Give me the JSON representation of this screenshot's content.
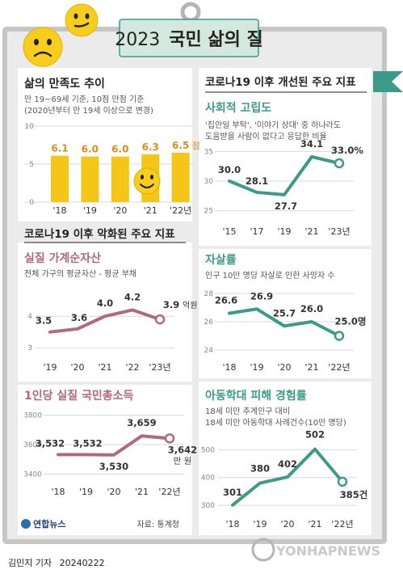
{
  "header": {
    "title_year": "2023",
    "title_text": "국민 삶의 질"
  },
  "colors": {
    "background": "#ebebeb",
    "panel": "#ffffff",
    "frame": "#c6c6c6",
    "teal": "#3c9b88",
    "mauve": "#b1697b",
    "yellow": "#f5c518",
    "title_green": "#d5e8e0",
    "orange_text": "#d9901a",
    "dark_text": "#222222",
    "grid_text": "#777777"
  },
  "charts": [
    {
      "title": "삶의 만족도 추이",
      "subtitle": [
        "만 19~69세 기준, 10점 만점 기준",
        "(2020년부터 만 19세 이상으로 변경)"
      ],
      "type": "bar",
      "categories": [
        "'18",
        "'19",
        "'20",
        "'21",
        "'22년"
      ],
      "values": [
        6.1,
        6.0,
        6.0,
        6.3,
        6.5
      ],
      "value_labels": [
        "6.1",
        "6.0",
        "6.0",
        "6.3",
        "6.5"
      ],
      "last_unit": "점",
      "ylim": [
        0,
        10
      ],
      "yticks": [
        0,
        5,
        10
      ]
    },
    {
      "section": "코로나19 이후 개선된 주요 지표",
      "title": "사회적 고립도",
      "subtitle": [
        "'집안일 부탁', '이야기 상대' 중 하나라도",
        "도움받을 사람이 없다고 응답한 비율"
      ],
      "type": "line",
      "categories": [
        "'15",
        "'17",
        "'19",
        "'21",
        "'23년"
      ],
      "values": [
        30.0,
        28.1,
        27.7,
        34.1,
        33.0
      ],
      "value_labels": [
        "30.0",
        "28.1",
        "27.7",
        "34.1",
        "33.0%"
      ],
      "ylim": [
        24,
        36
      ],
      "yticks": [
        25,
        30,
        35
      ],
      "color": "#3c9b88"
    },
    {
      "section": "코로나19 이후 악화된 주요 지표",
      "title": "실질 가계순자산",
      "subtitle": [
        "전체 가구의 평균자산 - 평균 부채"
      ],
      "type": "line",
      "categories": [
        "'19",
        "'20",
        "'21",
        "'22",
        "'23년"
      ],
      "values": [
        3.5,
        3.6,
        4.0,
        4.2,
        3.9
      ],
      "value_labels": [
        "3.5",
        "3.6",
        "4.0",
        "4.2",
        "3.9"
      ],
      "last_unit": "억원",
      "ylim": [
        2.8,
        4.8
      ],
      "yticks": [
        3,
        4
      ],
      "color": "#b1697b"
    },
    {
      "title": "자살률",
      "subtitle": [
        "인구 10만 명당 자살로 인한 사망자 수"
      ],
      "type": "line",
      "categories": [
        "'18",
        "'19",
        "'20",
        "'21",
        "'22년"
      ],
      "values": [
        26.6,
        26.9,
        25.7,
        26.0,
        25.0
      ],
      "value_labels": [
        "26.6",
        "26.9",
        "25.7",
        "26.0",
        "25.0명"
      ],
      "ylim": [
        23.6,
        28.4
      ],
      "yticks": [
        24,
        26,
        28
      ],
      "color": "#3c9b88"
    },
    {
      "title": "1인당 실질 국민총소득",
      "subtitle": [],
      "type": "line",
      "categories": [
        "'18",
        "'19",
        "'20",
        "'21",
        "'22년"
      ],
      "values": [
        3532,
        3532,
        3530,
        3659,
        3642
      ],
      "value_labels": [
        "3,532",
        "3,532",
        "3,530",
        "3,659",
        "3,642"
      ],
      "last_unit": "만 원",
      "ylim": [
        3370,
        3830
      ],
      "yticks": [
        3400,
        3600,
        3800
      ],
      "ytick_labels": [
        "3400",
        "3600",
        "3800"
      ],
      "color": "#b1697b"
    },
    {
      "title": "아동학대 피해 경험률",
      "subtitle": [
        "18세 미만 추계인구 대비",
        "18세 미만 아동학대 사례건수(10만 명당)"
      ],
      "type": "line",
      "categories": [
        "'18",
        "'19",
        "'20",
        "'21",
        "'22년"
      ],
      "values": [
        301,
        380,
        402,
        502,
        385
      ],
      "value_labels": [
        "301",
        "380",
        "402",
        "502",
        "385건"
      ],
      "ylim": [
        280,
        530
      ],
      "yticks": [
        300,
        400,
        500
      ],
      "color": "#3c9b88"
    }
  ],
  "footer": {
    "logo": "연합뉴스",
    "source": "자료: 통계청",
    "byline": "김민지 기자",
    "date": "20240222",
    "watermark": "YONHAPNEWS"
  }
}
